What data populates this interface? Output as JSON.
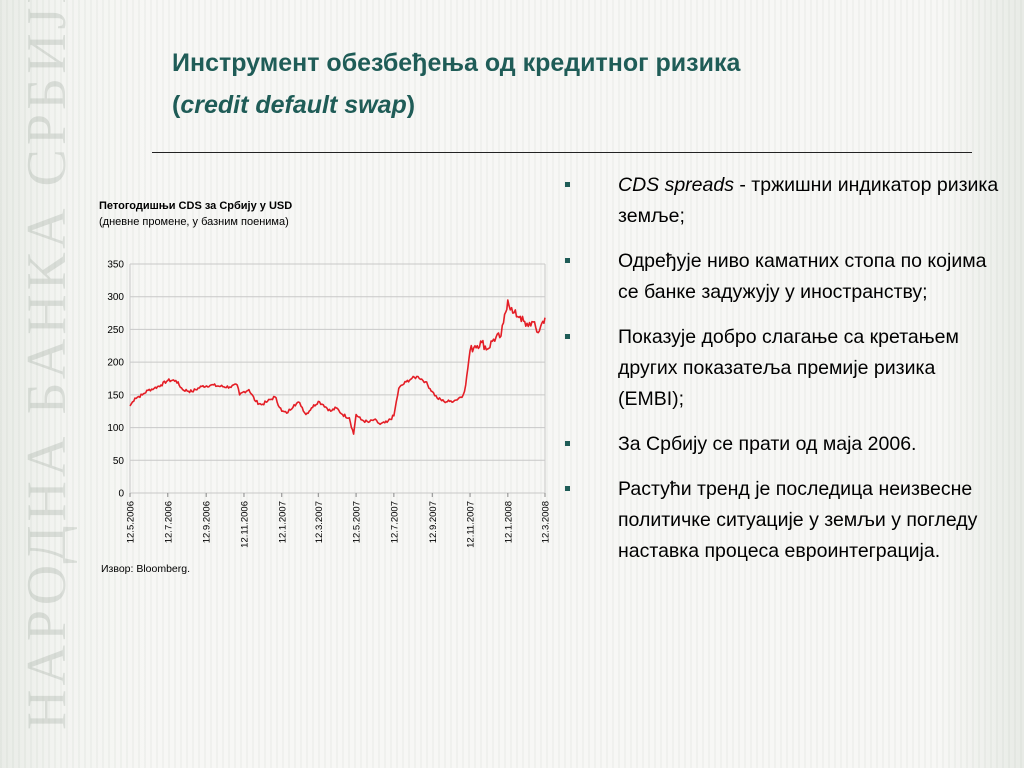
{
  "background": {
    "watermark_text": "НАРОДНА БАНКА СРБИЈЕ"
  },
  "title": {
    "line1": "Инструмент обезбеђења од кредитног ризика",
    "line2_open": "(",
    "line2_italic": "credit default swap",
    "line2_close": ")"
  },
  "chart_panel": {
    "title_bold": "Петогодишњи CDS за Србију у USD",
    "subtitle": "(дневне промене, у базним поенима)",
    "source": "Извор: Bloomberg."
  },
  "bullets": [
    {
      "italic": "CDS spreads",
      "text": "  - тржишни индикатор ризика земље;"
    },
    {
      "italic": "",
      "text": "Одређује ниво каматних стопа по којима се банке задужују у иностранству;"
    },
    {
      "italic": "",
      "text": "Показује добро слагање са кретањем других показатеља премије ризика (EMBI);"
    },
    {
      "italic": "",
      "text": "За Србију се прати од маја 2006."
    },
    {
      "italic": "",
      "text": "Растући тренд је последица неизвесне политичке ситуације у земљи у погледу наставка процеса евроинтеграција."
    }
  ],
  "colors": {
    "title": "#1f5c57",
    "line": "#e41e26",
    "grid": "#c8c8c8",
    "bullet": "#1f5c57"
  },
  "chart_data": {
    "type": "line",
    "title": "Петогодишњи CDS за Србију у USD",
    "subtitle": "(дневне промене, у базним поенима)",
    "ylim": [
      0,
      350
    ],
    "yticks": [
      0,
      50,
      100,
      150,
      200,
      250,
      300,
      350
    ],
    "xlim": [
      "2006-05-12",
      "2008-03-12"
    ],
    "xticks": [
      "12.5.2006",
      "12.7.2006",
      "12.9.2006",
      "12.11.2006",
      "12.1.2007",
      "12.3.2007",
      "12.5.2007",
      "12.7.2007",
      "12.9.2007",
      "12.11.2007",
      "12.1.2008",
      "12.3.2008"
    ],
    "grid": true,
    "series": [
      {
        "x": [
          "2006-05-12",
          "2006-05-20",
          "2006-06-01",
          "2006-06-10",
          "2006-06-20",
          "2006-07-01",
          "2006-07-12",
          "2006-07-25",
          "2006-08-05",
          "2006-08-20",
          "2006-09-05",
          "2006-09-20",
          "2006-10-05",
          "2006-10-20",
          "2006-11-01",
          "2006-11-05",
          "2006-11-12",
          "2006-11-20",
          "2006-12-01",
          "2006-12-10",
          "2006-12-20",
          "2007-01-01",
          "2007-01-12",
          "2007-01-20",
          "2007-02-01",
          "2007-02-10",
          "2007-02-20",
          "2007-03-01",
          "2007-03-12",
          "2007-03-20",
          "2007-04-01",
          "2007-04-10",
          "2007-04-20",
          "2007-05-01",
          "2007-05-08",
          "2007-05-12",
          "2007-05-20",
          "2007-06-01",
          "2007-06-10",
          "2007-06-20",
          "2007-07-01",
          "2007-07-12",
          "2007-07-20",
          "2007-08-01",
          "2007-08-10",
          "2007-08-20",
          "2007-09-01",
          "2007-09-12",
          "2007-09-20",
          "2007-10-01",
          "2007-10-10",
          "2007-10-20",
          "2007-11-01",
          "2007-11-05",
          "2007-11-12",
          "2007-11-20",
          "2007-12-01",
          "2007-12-10",
          "2007-12-20",
          "2008-01-01",
          "2008-01-05",
          "2008-01-12",
          "2008-01-20",
          "2008-02-01",
          "2008-02-10",
          "2008-02-20",
          "2008-03-01",
          "2008-03-05",
          "2008-03-12"
        ],
        "values": [
          133,
          145,
          150,
          157,
          160,
          165,
          172,
          172,
          158,
          155,
          163,
          165,
          163,
          162,
          165,
          150,
          155,
          158,
          140,
          135,
          140,
          147,
          125,
          122,
          135,
          138,
          120,
          130,
          140,
          135,
          125,
          130,
          120,
          115,
          90,
          120,
          112,
          108,
          112,
          105,
          108,
          118,
          160,
          170,
          175,
          178,
          170,
          155,
          145,
          140,
          140,
          142,
          150,
          165,
          218,
          225,
          230,
          220,
          235,
          240,
          260,
          295,
          275,
          270,
          255,
          262,
          245,
          255,
          268
        ]
      }
    ]
  }
}
